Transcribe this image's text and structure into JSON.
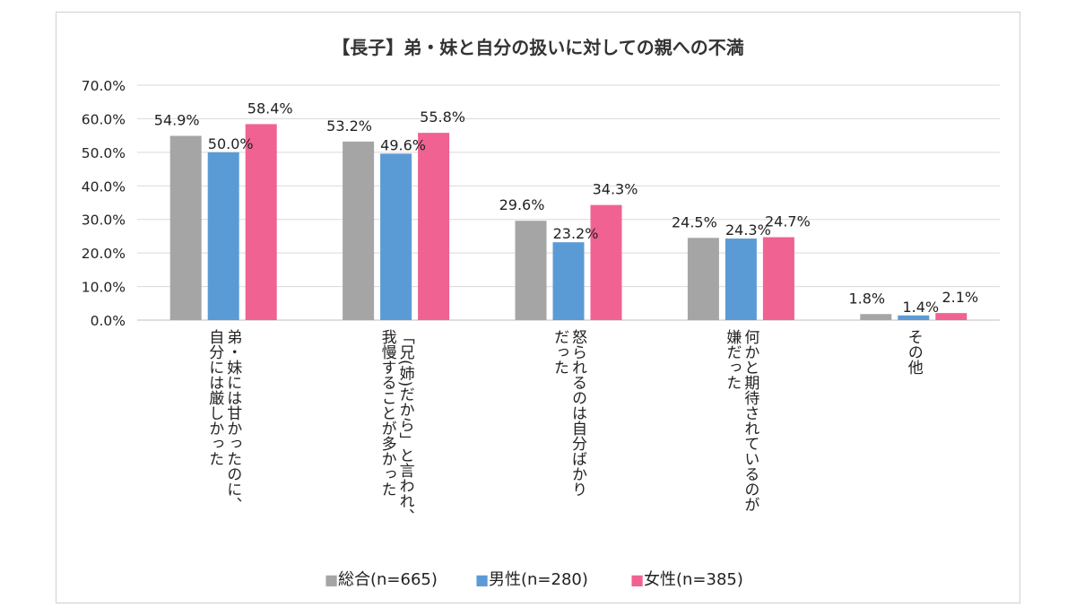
{
  "chart_data": {
    "type": "bar",
    "title": "【長子】弟・妹と自分の扱いに対しての親への不満",
    "categories": [
      [
        "弟・妹には甘かったのに、",
        "自分には厳しかった"
      ],
      [
        "「兄(姉)だから」と言われ、",
        "我慢することが多かった"
      ],
      [
        "怒られるのは自分ばかり",
        "だった"
      ],
      [
        "何かと期待されているのが",
        "嫌だった"
      ],
      [
        "その他"
      ]
    ],
    "series": [
      {
        "name": "総合(n=665)",
        "color": "#a5a5a5",
        "values": [
          54.9,
          53.2,
          29.6,
          24.5,
          1.8
        ],
        "labels": [
          "54.9%",
          "53.2%",
          "29.6%",
          "24.5%",
          "1.8%"
        ]
      },
      {
        "name": "男性(n=280)",
        "color": "#5b9bd5",
        "values": [
          50.0,
          49.6,
          23.2,
          24.3,
          1.4
        ],
        "labels": [
          "50.0%",
          "49.6%",
          "23.2%",
          "24.3%",
          "1.4%"
        ]
      },
      {
        "name": "女性(n=385)",
        "color": "#f06292",
        "values": [
          58.4,
          55.8,
          34.3,
          24.7,
          2.1
        ],
        "labels": [
          "58.4%",
          "55.8%",
          "34.3%",
          "24.7%",
          "2.1%"
        ]
      }
    ],
    "yticks": [
      "0.0%",
      "10.0%",
      "20.0%",
      "30.0%",
      "40.0%",
      "50.0%",
      "60.0%",
      "70.0%"
    ],
    "ylim": [
      0,
      70
    ],
    "grid": true,
    "legend_position": "bottom",
    "legend_marker": "■"
  }
}
